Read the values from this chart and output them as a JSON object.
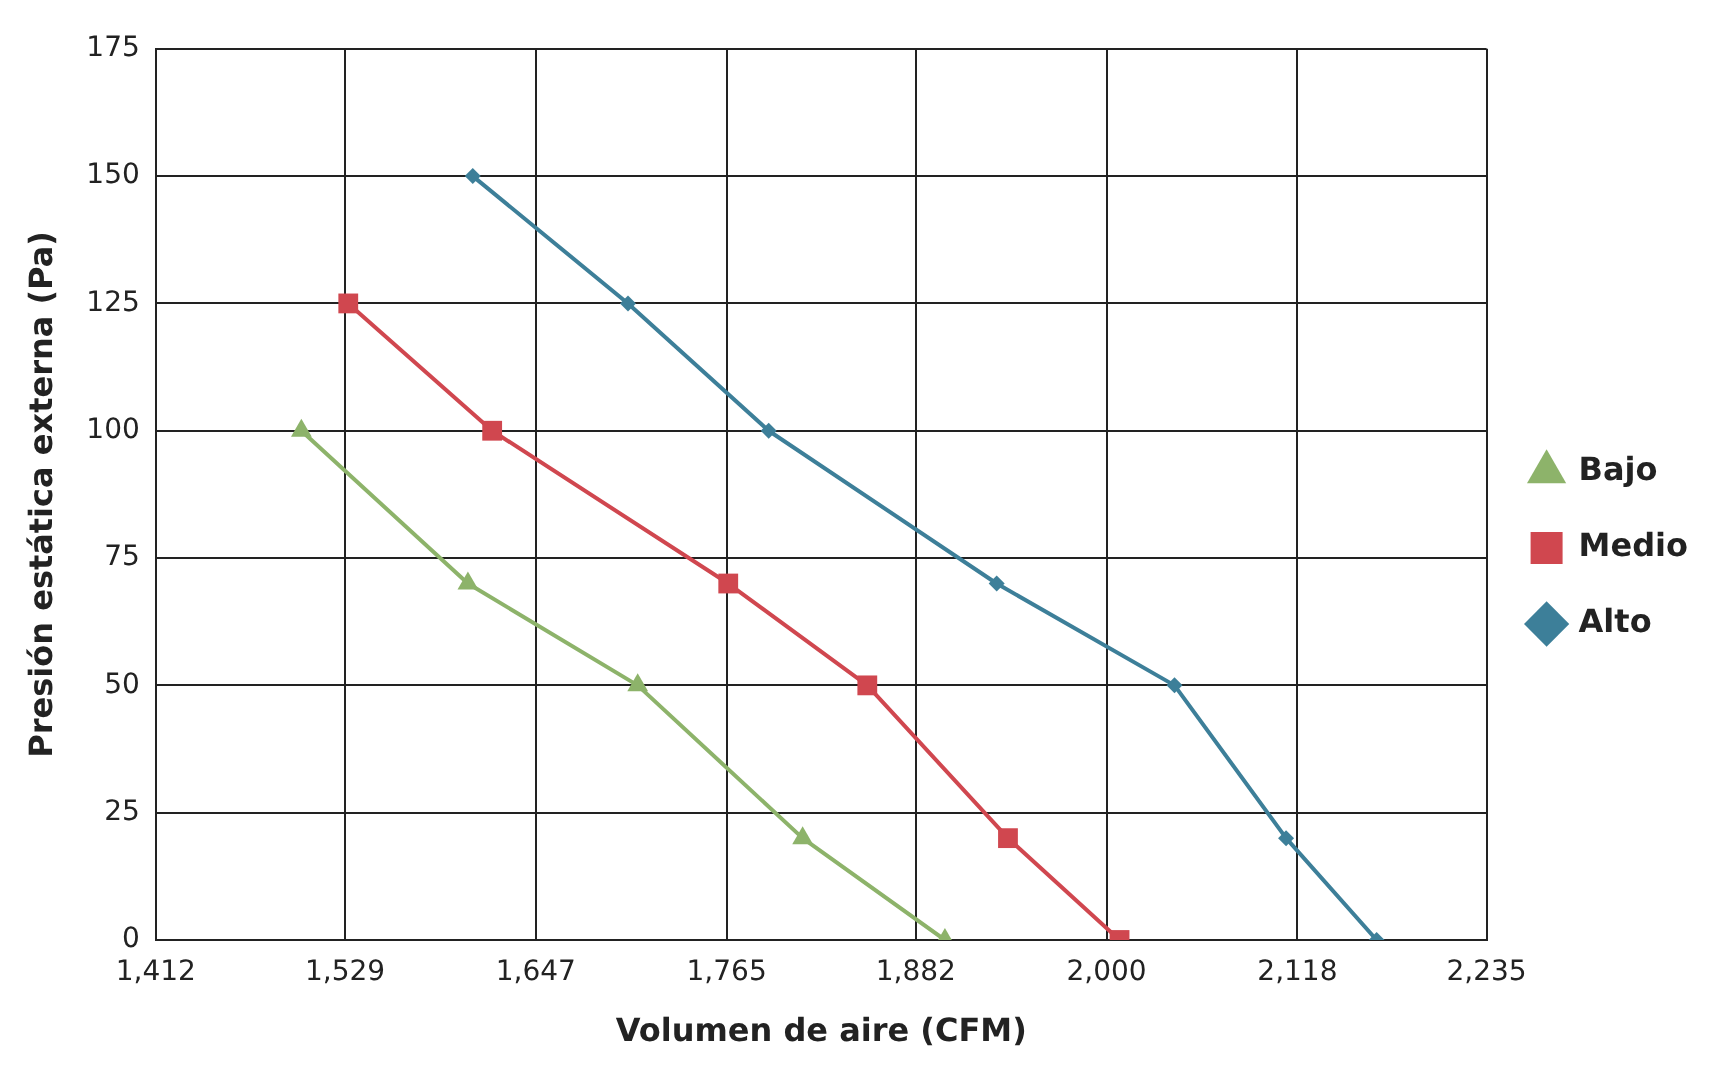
{
  "chart_data": {
    "type": "line",
    "xlabel": "Volumen de aire (CFM)",
    "ylabel": "Presión estática externa (Pa)",
    "series": [
      {
        "name": "Bajo",
        "color": "#8db36a",
        "marker": "triangle",
        "x": [
          1502,
          1605,
          1710,
          1812,
          1900
        ],
        "values": [
          100,
          70,
          50,
          20,
          0
        ]
      },
      {
        "name": "Medio",
        "color": "#d0474f",
        "marker": "square",
        "x": [
          1531,
          1620,
          1766,
          1852,
          1939,
          2008
        ],
        "values": [
          125,
          100,
          70,
          50,
          20,
          0
        ]
      },
      {
        "name": "Alto",
        "color": "#3d7f99",
        "marker": "diamond",
        "x": [
          1608,
          1704,
          1791,
          1932,
          2042,
          2111,
          2167
        ],
        "values": [
          150,
          125,
          100,
          70,
          50,
          20,
          0
        ]
      }
    ],
    "xlim": [
      1412,
      2235
    ],
    "xticks": [
      {
        "value": 1412,
        "label": "1,412"
      },
      {
        "value": 1529,
        "label": "1,529"
      },
      {
        "value": 1647,
        "label": "1,647"
      },
      {
        "value": 1765,
        "label": "1,765"
      },
      {
        "value": 1882,
        "label": "1,882"
      },
      {
        "value": 2000,
        "label": "2,000"
      },
      {
        "value": 2118,
        "label": "2,118"
      },
      {
        "value": 2235,
        "label": "2,235"
      }
    ],
    "ylim": [
      0,
      175
    ],
    "yticks": [
      0,
      25,
      50,
      75,
      100,
      125,
      150,
      175
    ],
    "grid": true,
    "legend": "right"
  }
}
